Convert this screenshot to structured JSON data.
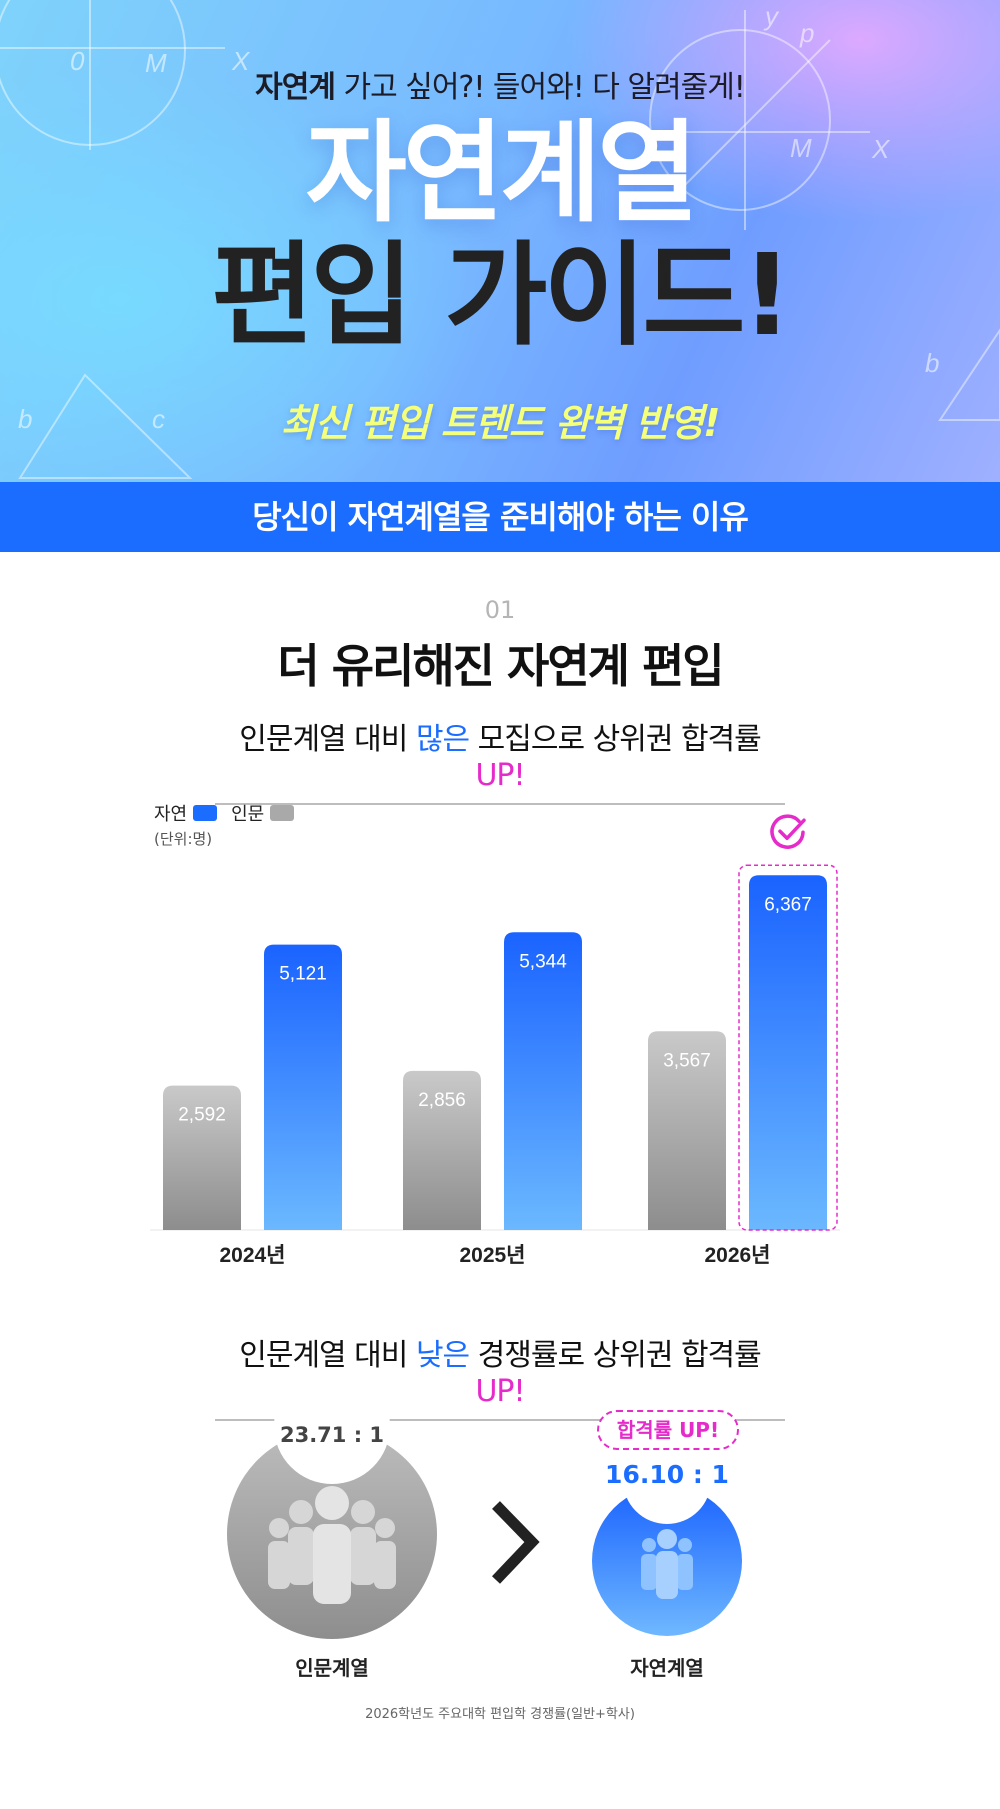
{
  "hero": {
    "tag_bold": "자연계",
    "tag_rest": " 가고 싶어?! 들어와! 다 알려줄게!",
    "title_line1": "자연계열",
    "title_line2": "편입 가이드!",
    "subtitle": "최신 편입 트렌드 완벽 반영!"
  },
  "banner": "당신이 자연계열을 준비해야 하는 이유",
  "section": {
    "number": "01",
    "title": "더 유리해진 자연계 편입",
    "headline1": {
      "pre": "인문계열 대비 ",
      "blue": "많은",
      "mid": " 모집으로 상위권 합격률 ",
      "pink": "UP!"
    },
    "headline2": {
      "pre": "인문계열 대비 ",
      "blue": "낮은",
      "mid": " 경쟁률로 상위권 합격률 ",
      "pink": "UP!"
    }
  },
  "legend": {
    "science": "자연",
    "humanities": "인문",
    "unit": "(단위:명)"
  },
  "colors": {
    "blue": "#1a6dff",
    "pink": "#e62bcb",
    "gray": "#a9a9a9"
  },
  "chart_data": {
    "type": "bar",
    "categories": [
      "2024년",
      "2025년",
      "2026년"
    ],
    "series": [
      {
        "name": "인문",
        "values": [
          2592,
          2856,
          3567
        ],
        "labels": [
          "2,592",
          "2,856",
          "3,567"
        ]
      },
      {
        "name": "자연",
        "values": [
          5121,
          5344,
          6367
        ],
        "labels": [
          "5,121",
          "5,344",
          "6,367"
        ]
      }
    ],
    "ylim": [
      0,
      7000
    ],
    "highlight_category": "2026년",
    "legend_position": "top-left",
    "grid": false
  },
  "ratios": {
    "humanities": {
      "value": "23.71 : 1",
      "label": "인문계열"
    },
    "science": {
      "value": "16.10 : 1",
      "label": "자연계열"
    },
    "badge": "합격률 UP!",
    "footnote": "2026학년도 주요대학 편입학 경쟁률(일반+학사)"
  }
}
